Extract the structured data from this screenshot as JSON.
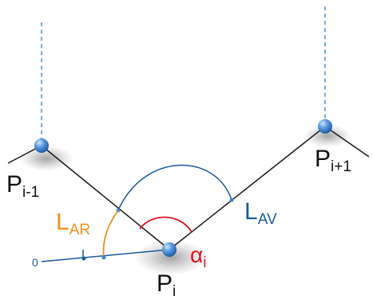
{
  "points": {
    "prev": {
      "base": "P",
      "sub": "i-1"
    },
    "current": {
      "base": "P",
      "sub": "i"
    },
    "next": {
      "base": "P",
      "sub": "i+1"
    }
  },
  "lengths": {
    "rear": {
      "base": "L",
      "sub": "AR",
      "color": "#f0901c"
    },
    "forward": {
      "base": "L",
      "sub": "AV",
      "color": "#1a5aa0"
    }
  },
  "angle": {
    "base": "α",
    "sub": "i",
    "color": "#e0141e"
  },
  "origin": {
    "label": "0",
    "color": "#1a5aa0"
  },
  "colors": {
    "segment": "#1a1a1a",
    "vertical_guide": "#2a78c8",
    "arc_forward": "#1a5aa0",
    "arc_rear": "#f0901c",
    "arc_angle": "#e0141e",
    "sphere_light": "#cfe6ff",
    "sphere_dark": "#1b5fa8"
  }
}
